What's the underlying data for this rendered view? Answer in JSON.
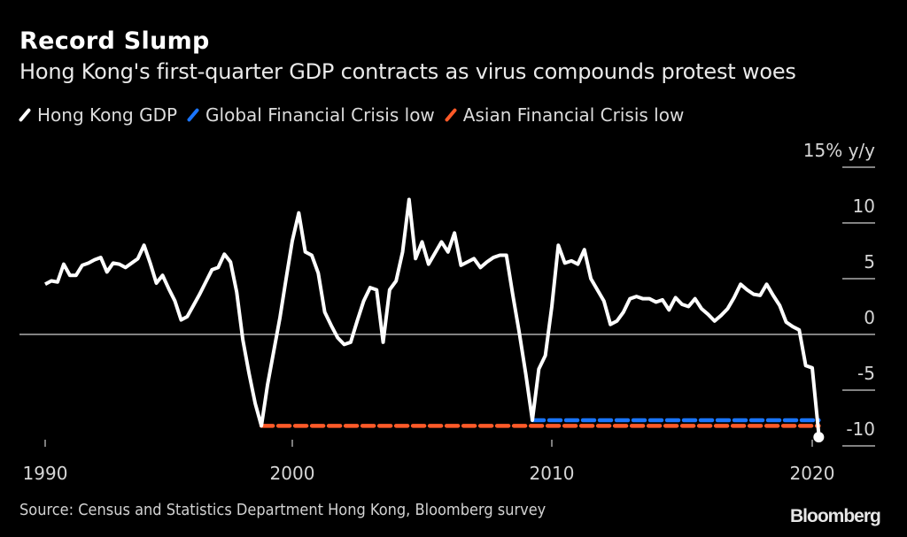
{
  "chart_data": {
    "type": "line",
    "title": "Record Slump",
    "subtitle": "Hong Kong's first-quarter GDP contracts as virus compounds protest woes",
    "ylabel": "15% y/y",
    "xlabel": "",
    "ylim": [
      -12,
      15
    ],
    "yticks": [
      15,
      10,
      5,
      0,
      -5,
      -10
    ],
    "ytick_labels": [
      "15% y/y",
      "10",
      "5",
      "0",
      "-5",
      "-10"
    ],
    "xticks": [
      1990,
      2000,
      2010,
      2020
    ],
    "xtick_labels": [
      "1990",
      "2000",
      "2010",
      "2020"
    ],
    "grid": "y-axis stubs at right; zero line across",
    "legend_position": "top-left",
    "source": "Source:  Census and Statistics Department Hong Kong, Bloomberg survey",
    "logo": "Bloomberg",
    "series": [
      {
        "name": "Hong Kong GDP",
        "color": "#ffffff",
        "style": "solid",
        "x_start": 1990.0,
        "x_step": 0.25,
        "values": [
          4.5,
          4.8,
          4.7,
          6.3,
          5.3,
          5.3,
          6.2,
          6.4,
          6.7,
          6.9,
          5.6,
          6.4,
          6.3,
          6.0,
          6.4,
          6.8,
          8.0,
          6.4,
          4.6,
          5.3,
          4.1,
          3.0,
          1.3,
          1.6,
          2.6,
          3.6,
          4.7,
          5.8,
          6.0,
          7.2,
          6.5,
          3.8,
          -0.5,
          -3.5,
          -6.2,
          -8.2,
          -4.5,
          -1.5,
          1.5,
          5.0,
          8.4,
          10.9,
          7.4,
          7.1,
          5.5,
          2.0,
          0.8,
          -0.3,
          -0.9,
          -0.7,
          1.2,
          3.0,
          4.2,
          4.0,
          -0.7,
          4.0,
          4.8,
          7.4,
          12.1,
          6.8,
          8.3,
          6.3,
          7.3,
          8.3,
          7.4,
          9.1,
          6.2,
          6.5,
          6.8,
          6.0,
          6.5,
          6.9,
          7.1,
          7.1,
          3.5,
          0.1,
          -3.6,
          -7.7,
          -3.1,
          -1.9,
          2.5,
          8.0,
          6.4,
          6.6,
          6.3,
          7.6,
          5.0,
          4.0,
          3.0,
          0.9,
          1.2,
          2.0,
          3.2,
          3.4,
          3.2,
          3.2,
          2.9,
          3.1,
          2.2,
          3.3,
          2.7,
          2.5,
          3.2,
          2.3,
          1.8,
          1.2,
          1.7,
          2.3,
          3.3,
          4.5,
          4.0,
          3.6,
          3.5,
          4.5,
          3.5,
          2.6,
          1.1,
          0.7,
          0.4,
          -2.8,
          -3.0,
          -8.9
        ]
      },
      {
        "name": "Global Financial Crisis low",
        "color": "#1a75ff",
        "style": "dashed",
        "value": -7.7,
        "x_from": 2009.25,
        "x_to": 2020.25
      },
      {
        "name": "Asian Financial Crisis low",
        "color": "#ff5a28",
        "style": "dashed",
        "value": -8.2,
        "x_from": 1998.75,
        "x_to": 2020.25
      }
    ]
  }
}
